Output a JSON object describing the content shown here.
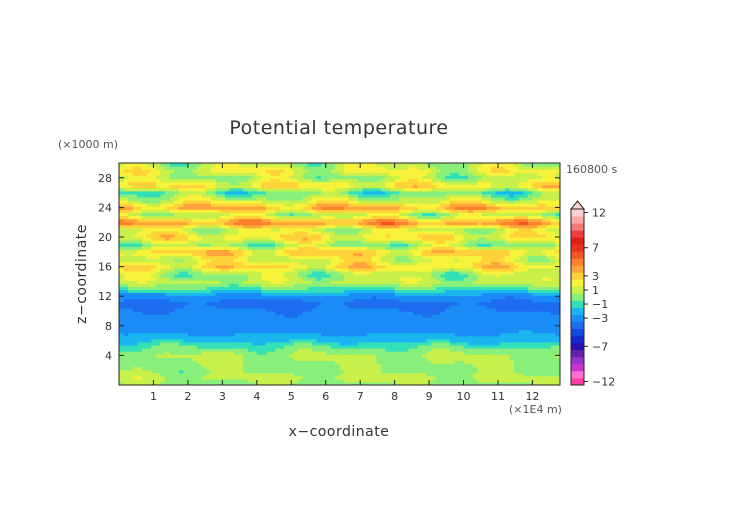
{
  "chart_data": {
    "type": "heatmap",
    "title": "Potential temperature",
    "xlabel": "x−coordinate",
    "ylabel": "z−coordinate",
    "x_unit": "(×1E4 m)",
    "y_unit": "(×1000 m)",
    "time_label": "160800 s",
    "xlim": [
      0,
      12.8
    ],
    "ylim": [
      0,
      30
    ],
    "x_ticks": [
      "1",
      "2",
      "3",
      "4",
      "5",
      "6",
      "7",
      "8",
      "9",
      "10",
      "11",
      "12"
    ],
    "y_ticks": [
      "4",
      "8",
      "12",
      "16",
      "20",
      "24",
      "28"
    ],
    "colorbar": {
      "levels": [
        -12,
        -11,
        -10,
        -9,
        -8,
        -7,
        -6,
        -5,
        -4,
        -3,
        -2,
        -1,
        0,
        1,
        2,
        3,
        4,
        5,
        6,
        7,
        8,
        9,
        10,
        11,
        12
      ],
      "colors": [
        "#ff3ea5",
        "#ff6fd0",
        "#cc33cc",
        "#9933cc",
        "#6622aa",
        "#2b0fb0",
        "#1428d0",
        "#1448e0",
        "#1f6cf0",
        "#1a8cf5",
        "#19b6f0",
        "#33e0b8",
        "#88f07a",
        "#c8f04a",
        "#f6f33a",
        "#ffd23a",
        "#ffa43a",
        "#ff7f2a",
        "#f25522",
        "#e8321c",
        "#e01f18",
        "#ee4040",
        "#f47a7a",
        "#f7a8a8",
        "#fcd0d0"
      ],
      "tick_labels": [
        "12",
        "7",
        "3",
        "1",
        "−1",
        "−3",
        "−7",
        "−12"
      ]
    },
    "bands": [
      {
        "z": 0.0,
        "v": 0.1
      },
      {
        "z": 1.0,
        "v": 0.8
      },
      {
        "z": 2.0,
        "v": 0.2
      },
      {
        "z": 3.0,
        "v": 0.4
      },
      {
        "z": 4.0,
        "v": 0.6
      },
      {
        "z": 5.0,
        "v": -0.3
      },
      {
        "z": 6.0,
        "v": -1.6
      },
      {
        "z": 7.0,
        "v": -2.6
      },
      {
        "z": 8.0,
        "v": -3.0
      },
      {
        "z": 9.0,
        "v": -3.2
      },
      {
        "z": 10.0,
        "v": -3.4
      },
      {
        "z": 11.0,
        "v": -3.7
      },
      {
        "z": 12.0,
        "v": -3.2
      },
      {
        "z": 13.0,
        "v": -0.8
      },
      {
        "z": 14.0,
        "v": 0.9
      },
      {
        "z": 15.0,
        "v": 0.4
      },
      {
        "z": 16.0,
        "v": 2.6
      },
      {
        "z": 17.0,
        "v": 1.4
      },
      {
        "z": 18.0,
        "v": 3.0
      },
      {
        "z": 19.0,
        "v": 0.2
      },
      {
        "z": 20.0,
        "v": 2.4
      },
      {
        "z": 21.0,
        "v": 1.0
      },
      {
        "z": 22.0,
        "v": 4.5
      },
      {
        "z": 23.0,
        "v": 0.5
      },
      {
        "z": 24.0,
        "v": 3.8
      },
      {
        "z": 25.0,
        "v": 1.2
      },
      {
        "z": 26.0,
        "v": -0.6
      },
      {
        "z": 27.0,
        "v": 2.5
      },
      {
        "z": 28.0,
        "v": 0.4
      },
      {
        "z": 29.0,
        "v": 1.6
      },
      {
        "z": 30.0,
        "v": 0.6
      }
    ]
  }
}
